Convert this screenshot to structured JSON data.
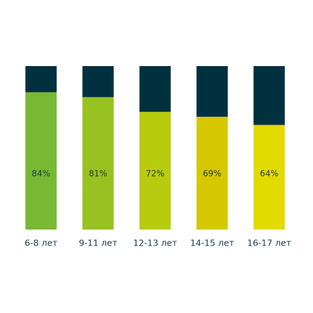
{
  "chart_data": {
    "type": "stacked-bar",
    "categories": [
      "6-8 лет",
      "9-11 лет",
      "12-13 лет",
      "14-15 лет",
      "16-17 лет"
    ],
    "series": [
      {
        "colors": [
          "#78b833",
          "#98c21f",
          "#b8cc0f",
          "#d6c800",
          "#e2db00"
        ],
        "values": [
          84,
          81,
          72,
          69,
          64
        ],
        "value_labels": [
          "84%",
          "81%",
          "72%",
          "69%",
          "64%"
        ]
      },
      {
        "color": "#01303f",
        "values": [
          16,
          19,
          28,
          31,
          36
        ]
      }
    ],
    "ylim": [
      0,
      100
    ]
  }
}
